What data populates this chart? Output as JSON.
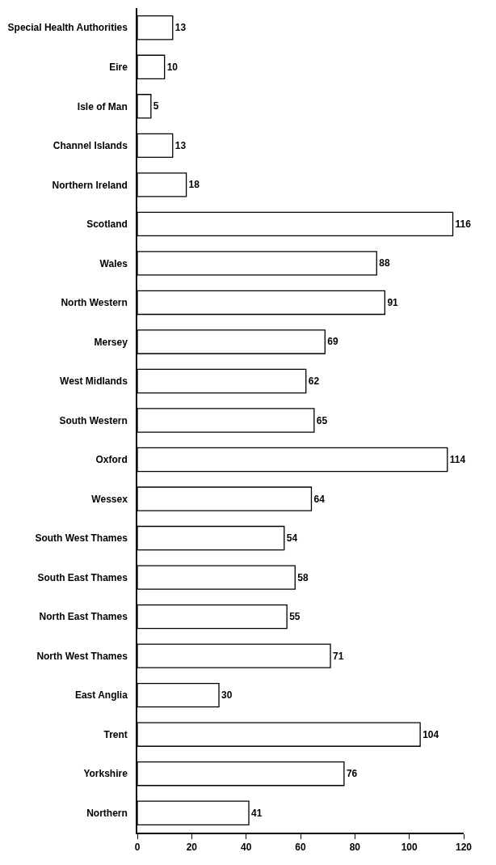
{
  "chart_data": {
    "type": "bar",
    "orientation": "horizontal",
    "categories": [
      "Special Health Authorities",
      "Eire",
      "Isle of Man",
      "Channel Islands",
      "Northern Ireland",
      "Scotland",
      "Wales",
      "North Western",
      "Mersey",
      "West Midlands",
      "South Western",
      "Oxford",
      "Wessex",
      "South West Thames",
      "South East Thames",
      "North East Thames",
      "North West Thames",
      "East Anglia",
      "Trent",
      "Yorkshire",
      "Northern"
    ],
    "values": [
      13,
      10,
      5,
      13,
      18,
      116,
      88,
      91,
      69,
      62,
      65,
      114,
      64,
      54,
      58,
      55,
      71,
      30,
      104,
      76,
      41
    ],
    "color": "#ffffff",
    "data_labels": true,
    "xlim": [
      0,
      120
    ],
    "xticks": [
      0,
      20,
      40,
      60,
      80,
      100,
      120
    ]
  }
}
